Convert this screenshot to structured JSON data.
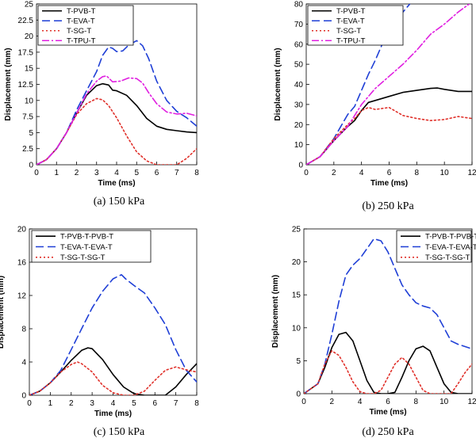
{
  "chart_data": [
    {
      "type": "line",
      "caption": "(a) 150 kPa",
      "xlabel": "Time (ms)",
      "ylabel": "Displacement (mm)",
      "xlim": [
        0,
        8
      ],
      "ylim": [
        0,
        25
      ],
      "xticks": [
        0,
        1,
        2,
        3,
        4,
        5,
        6,
        7,
        8
      ],
      "yticks": [
        0,
        2.5,
        5,
        7.5,
        10,
        12.5,
        15,
        17.5,
        20,
        22.5,
        25
      ],
      "ytick_labels": [
        "0",
        "2.5",
        "5",
        "7.5",
        "10",
        "12.5",
        "15",
        "17.5",
        "20",
        "22.5",
        "25"
      ],
      "legend_position": "top-left",
      "series": [
        {
          "name": "T-PVB-T",
          "color": "#000000",
          "dash": "solid",
          "x": [
            0,
            0.5,
            1,
            1.5,
            2,
            2.5,
            3,
            3.3,
            3.6,
            3.8,
            4,
            4.5,
            5,
            5.5,
            6,
            6.5,
            7,
            7.5,
            8
          ],
          "y": [
            0,
            0.8,
            2.5,
            5,
            8,
            10.8,
            12.3,
            12.6,
            12.4,
            11.6,
            11.5,
            10.8,
            9.2,
            7.2,
            6,
            5.5,
            5.3,
            5.1,
            5
          ]
        },
        {
          "name": "T-EVA-T",
          "color": "#1f3fd6",
          "dash": "long",
          "x": [
            0,
            0.5,
            1,
            1.5,
            2,
            2.5,
            3,
            3.3,
            3.6,
            3.8,
            4,
            4.3,
            4.6,
            5,
            5.3,
            5.6,
            6,
            6.5,
            7,
            7.5,
            8
          ],
          "y": [
            0,
            0.8,
            2.5,
            5,
            8.5,
            11.5,
            14.5,
            17,
            18.3,
            18.1,
            17.6,
            17.7,
            18.6,
            19.3,
            18.5,
            16.5,
            13,
            10,
            8.3,
            7.3,
            6
          ]
        },
        {
          "name": "T-SG-T",
          "color": "#e0302a",
          "dash": "dot",
          "x": [
            0,
            0.5,
            1,
            1.5,
            2,
            2.5,
            3,
            3.3,
            3.6,
            4,
            4.5,
            5,
            5.5,
            6,
            6.5,
            7,
            7.5,
            8
          ],
          "y": [
            0,
            0.8,
            2.5,
            5,
            7.8,
            9.5,
            10.3,
            10.1,
            9.2,
            7.3,
            4.5,
            2,
            0.6,
            0,
            0,
            0,
            1,
            2.5
          ]
        },
        {
          "name": "T-TPU-T",
          "color": "#e020e0",
          "dash": "dashdot",
          "x": [
            0,
            0.5,
            1,
            1.5,
            2,
            2.5,
            3,
            3.3,
            3.5,
            3.8,
            4.2,
            4.6,
            5,
            5.3,
            5.6,
            6,
            6.5,
            7,
            7.5,
            8
          ],
          "y": [
            0,
            0.8,
            2.5,
            5,
            8,
            11,
            13,
            13.7,
            13.8,
            12.9,
            13,
            13.5,
            13.4,
            12.7,
            11.2,
            9.5,
            8.2,
            7.9,
            8,
            7.6
          ]
        }
      ]
    },
    {
      "type": "line",
      "caption": "(b) 250 kPa",
      "xlabel": "Time (ms)",
      "ylabel": "Displacement (mm)",
      "xlim": [
        0,
        12
      ],
      "ylim": [
        0,
        80
      ],
      "xticks": [
        0,
        2,
        4,
        6,
        8,
        10,
        12
      ],
      "yticks": [
        0,
        10,
        20,
        30,
        40,
        50,
        60,
        70,
        80
      ],
      "ytick_labels": [
        "0",
        "10",
        "20",
        "30",
        "40",
        "50",
        "60",
        "70",
        "80"
      ],
      "legend_position": "top-left",
      "series": [
        {
          "name": "T-PVB-T",
          "color": "#000000",
          "dash": "solid",
          "x": [
            0,
            1,
            2,
            3,
            3.5,
            4,
            4.5,
            5,
            6,
            7,
            8,
            9,
            9.5,
            10,
            11,
            12
          ],
          "y": [
            0,
            4,
            12,
            19,
            22,
            27,
            31,
            32,
            34,
            36,
            37,
            38,
            38.2,
            37.5,
            36.5,
            36.5
          ]
        },
        {
          "name": "T-EVA-T",
          "color": "#1f3fd6",
          "dash": "long",
          "x": [
            0,
            1,
            2,
            2.5,
            3,
            3.5,
            4,
            4.5,
            5,
            5.5,
            6,
            6.5,
            7,
            7.5
          ],
          "y": [
            0,
            4,
            13,
            19,
            25,
            29,
            37,
            45,
            52,
            60,
            66,
            70,
            76,
            80
          ]
        },
        {
          "name": "T-SG-T",
          "color": "#e0302a",
          "dash": "dot",
          "x": [
            0,
            1,
            2,
            3,
            3.5,
            4,
            4.5,
            5,
            5.5,
            6,
            6.5,
            7,
            8,
            9,
            10,
            11,
            12
          ],
          "y": [
            0,
            4,
            13,
            20,
            23,
            27,
            28.5,
            27.5,
            28,
            28.5,
            26.5,
            24.5,
            23,
            22,
            22.5,
            24,
            23
          ]
        },
        {
          "name": "T-TPU-T",
          "color": "#e020e0",
          "dash": "dashdot",
          "x": [
            0,
            1,
            2,
            3,
            4,
            5,
            6,
            7,
            8,
            9,
            10,
            11,
            11.8
          ],
          "y": [
            0,
            4,
            12,
            19,
            30,
            38,
            44,
            50,
            57,
            65,
            70,
            76,
            80
          ]
        }
      ]
    },
    {
      "type": "line",
      "caption": "(c) 150 kPa",
      "xlabel": "Time (ms)",
      "ylabel": "Displacement (mm)",
      "xlim": [
        0,
        8
      ],
      "ylim": [
        0,
        20
      ],
      "xticks": [
        0,
        1,
        2,
        3,
        4,
        5,
        6,
        7,
        8
      ],
      "yticks": [
        0,
        4,
        8,
        12,
        16,
        20
      ],
      "ytick_labels": [
        "0",
        "4",
        "8",
        "12",
        "16",
        "20"
      ],
      "legend_position": "top-left",
      "series": [
        {
          "name": "T-PVB-T-PVB-T",
          "color": "#000000",
          "dash": "solid",
          "x": [
            0,
            0.5,
            1,
            1.5,
            2,
            2.5,
            2.8,
            3,
            3.5,
            4,
            4.5,
            5,
            5.5,
            6,
            6.5,
            7,
            7.5,
            8
          ],
          "y": [
            0,
            0.5,
            1.5,
            2.8,
            4.2,
            5.4,
            5.7,
            5.6,
            4.3,
            2.5,
            1,
            0.2,
            0,
            0,
            0,
            1,
            2.5,
            3.8
          ]
        },
        {
          "name": "T-EVA-T-EVA-T",
          "color": "#1f3fd6",
          "dash": "long",
          "x": [
            0,
            0.5,
            1,
            1.5,
            2,
            2.5,
            3,
            3.5,
            4,
            4.4,
            4.6,
            5,
            5.5,
            6,
            6.5,
            7,
            7.5,
            8
          ],
          "y": [
            0,
            0.5,
            1.5,
            3,
            5.5,
            8,
            10.5,
            12.5,
            14,
            14.5,
            14,
            13.2,
            12.3,
            10.5,
            8.5,
            5.5,
            3,
            1.6
          ]
        },
        {
          "name": "T-SG-T-SG-T",
          "color": "#e0302a",
          "dash": "dot",
          "x": [
            0,
            0.5,
            1,
            1.5,
            2,
            2.3,
            2.5,
            3,
            3.5,
            4,
            4.5,
            5,
            5.5,
            6,
            6.5,
            7,
            7.3,
            7.6,
            8
          ],
          "y": [
            0,
            0.5,
            1.5,
            2.8,
            3.7,
            4,
            3.8,
            2.8,
            1.2,
            0.3,
            0,
            0,
            0.5,
            1.8,
            3,
            3.4,
            3.2,
            3,
            2.8
          ]
        }
      ]
    },
    {
      "type": "line",
      "caption": "(d) 250 kPa",
      "xlabel": "Time (ms)",
      "ylabel": "Displacement (mm)",
      "xlim": [
        0,
        12
      ],
      "ylim": [
        0,
        25
      ],
      "xticks": [
        0,
        2,
        4,
        6,
        8,
        10,
        12
      ],
      "yticks": [
        0,
        5,
        10,
        15,
        20,
        25
      ],
      "ytick_labels": [
        "0",
        "5",
        "10",
        "15",
        "20",
        "25"
      ],
      "legend_position": "top-right",
      "series": [
        {
          "name": "T-PVB-T-PVB-T",
          "color": "#000000",
          "dash": "solid",
          "x": [
            0,
            1,
            1.5,
            2,
            2.5,
            3,
            3.5,
            4,
            4.5,
            5,
            5.5,
            6,
            6.5,
            7,
            7.5,
            8,
            8.5,
            9,
            9.5,
            10,
            10.5,
            11,
            12
          ],
          "y": [
            0,
            1.5,
            4,
            7,
            9,
            9.3,
            8,
            5,
            2,
            0.2,
            0,
            0,
            0.2,
            2.5,
            5,
            6.8,
            7.2,
            6.5,
            4,
            1.5,
            0.2,
            0,
            0
          ]
        },
        {
          "name": "T-EVA-T-EVA-T",
          "color": "#1f3fd6",
          "dash": "long",
          "x": [
            0,
            1,
            1.5,
            2,
            2.5,
            3,
            3.5,
            4,
            4.5,
            5,
            5.5,
            6,
            6.5,
            7,
            7.5,
            8,
            8.5,
            9,
            9.5,
            10,
            10.5,
            11,
            12
          ],
          "y": [
            0,
            1.5,
            4.5,
            9,
            14,
            18,
            19.5,
            20.5,
            22,
            23.5,
            23.2,
            21.5,
            19,
            16.5,
            15,
            13.8,
            13.3,
            13,
            12,
            10,
            8,
            7.5,
            6.8
          ]
        },
        {
          "name": "T-SG-T-SG-T",
          "color": "#e0302a",
          "dash": "dot",
          "x": [
            0,
            1,
            1.5,
            2,
            2.5,
            3,
            3.5,
            4,
            4.5,
            5,
            5.5,
            6,
            6.5,
            7,
            7.5,
            8,
            8.5,
            9,
            9.5,
            10,
            10.5,
            11,
            11.5,
            12
          ],
          "y": [
            0,
            1.5,
            4.5,
            6.5,
            5.8,
            4,
            1.8,
            0.3,
            0,
            0,
            0.5,
            2.5,
            4.5,
            5.5,
            4.5,
            2.5,
            0.5,
            0,
            0,
            0,
            0,
            1.5,
            3.2,
            4.5
          ]
        }
      ]
    }
  ]
}
